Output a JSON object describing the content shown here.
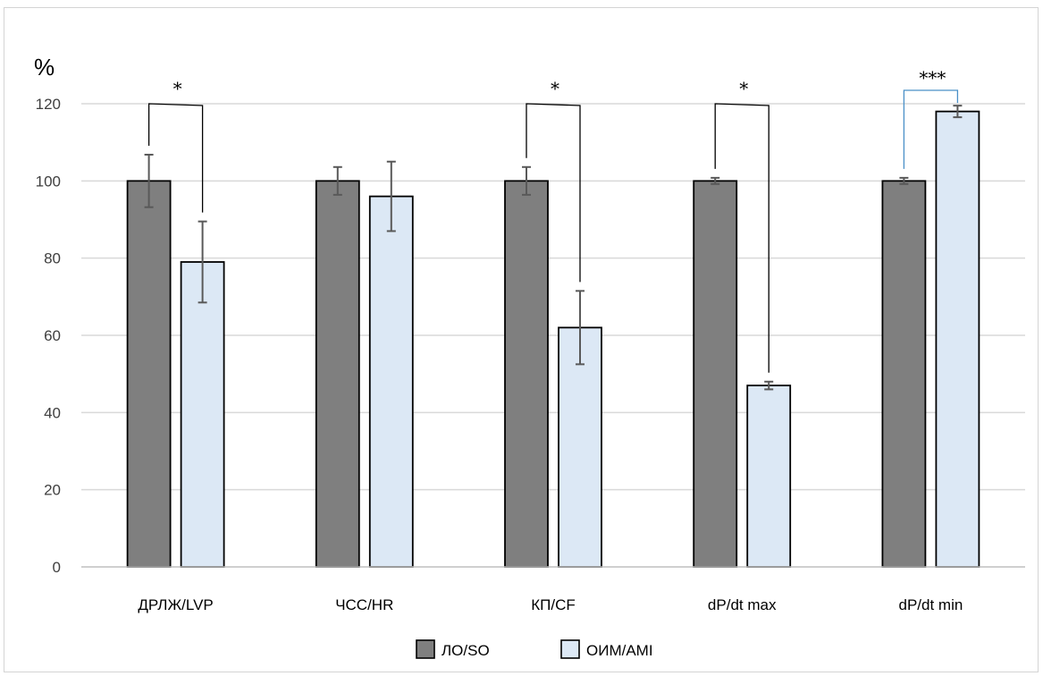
{
  "chart_data": {
    "type": "bar",
    "ylabel": "%",
    "ylim": [
      0,
      120
    ],
    "yticks": [
      0,
      20,
      40,
      60,
      80,
      100,
      120
    ],
    "grid": true,
    "legend_position": "bottom",
    "categories": [
      "ДРЛЖ/LVP",
      "ЧСС/HR",
      "КП/CF",
      "dP/dt max",
      "dP/dt min"
    ],
    "series": [
      {
        "name": "ЛО/SO",
        "color": "#7f7f7f",
        "values": [
          100,
          100,
          100,
          100,
          100
        ],
        "errors": [
          6.8,
          3.6,
          3.6,
          0.8,
          0.8
        ]
      },
      {
        "name": "ОИМ/AMI",
        "color": "#dce8f5",
        "values": [
          79,
          96,
          62,
          47,
          118
        ],
        "errors": [
          10.5,
          9,
          9.5,
          1,
          1.5
        ]
      }
    ],
    "significance": [
      {
        "category_index": 0,
        "label": "*"
      },
      {
        "category_index": 2,
        "label": "*"
      },
      {
        "category_index": 3,
        "label": "*"
      },
      {
        "category_index": 4,
        "label": "***"
      }
    ]
  }
}
